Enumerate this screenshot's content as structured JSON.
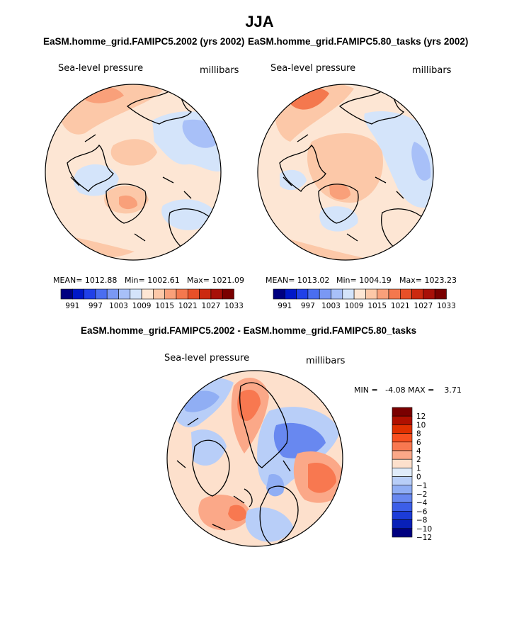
{
  "title": "JJA",
  "chart_data": [
    {
      "type": "heatmap",
      "title": "EaSM.homme_grid.FAMIPC5.2002 (yrs 2002)",
      "variable": "Sea-level pressure",
      "units": "millibars",
      "projection": "north polar stereographic",
      "stats": {
        "mean_label": "MEAN= 1012.88",
        "min_label": "Min= 1002.61",
        "max_label": "Max= 1021.09",
        "mean": 1012.88,
        "min": 1002.61,
        "max": 1021.09
      },
      "colorbar_ticks": [
        "991",
        "997",
        "1003",
        "1009",
        "1015",
        "1021",
        "1027",
        "1033"
      ]
    },
    {
      "type": "heatmap",
      "title": "EaSM.homme_grid.FAMIPC5.80_tasks (yrs 2002)",
      "variable": "Sea-level pressure",
      "units": "millibars",
      "projection": "north polar stereographic",
      "stats": {
        "mean_label": "MEAN= 1013.02",
        "min_label": "Min= 1004.19",
        "max_label": "Max= 1023.23",
        "mean": 1013.02,
        "min": 1004.19,
        "max": 1023.23
      },
      "colorbar_ticks": [
        "991",
        "997",
        "1003",
        "1009",
        "1015",
        "1021",
        "1027",
        "1033"
      ]
    },
    {
      "type": "heatmap",
      "title": "EaSM.homme_grid.FAMIPC5.2002 - EaSM.homme_grid.FAMIPC5.80_tasks",
      "variable": "Sea-level pressure",
      "units": "millibars",
      "projection": "north polar stereographic",
      "stats": {
        "minmax_label": "MIN =   -4.08 MAX =    3.71",
        "min": -4.08,
        "max": 3.71
      },
      "colorbar_ticks": [
        "12",
        "10",
        "8",
        "6",
        "4",
        "2",
        "1",
        "0",
        "−1",
        "−2",
        "−4",
        "−6",
        "−8",
        "−10",
        "−12"
      ]
    }
  ],
  "abs_colors": [
    "#000080",
    "#0018c8",
    "#2040e8",
    "#4a6ef0",
    "#7a98f4",
    "#a8c0f8",
    "#d4e4fa",
    "#fde6d4",
    "#fcc8a8",
    "#f9a07a",
    "#f4784e",
    "#e85028",
    "#cc2a10",
    "#a81008",
    "#7a0000"
  ],
  "diff_colors": [
    "#7a0000",
    "#b01000",
    "#e03000",
    "#f85020",
    "#f87850",
    "#fba888",
    "#fde0cc",
    "#e0ecfa",
    "#b8cef8",
    "#90aef4",
    "#6888f0",
    "#3c5ee8",
    "#1c3cd8",
    "#0820b8",
    "#000080"
  ]
}
